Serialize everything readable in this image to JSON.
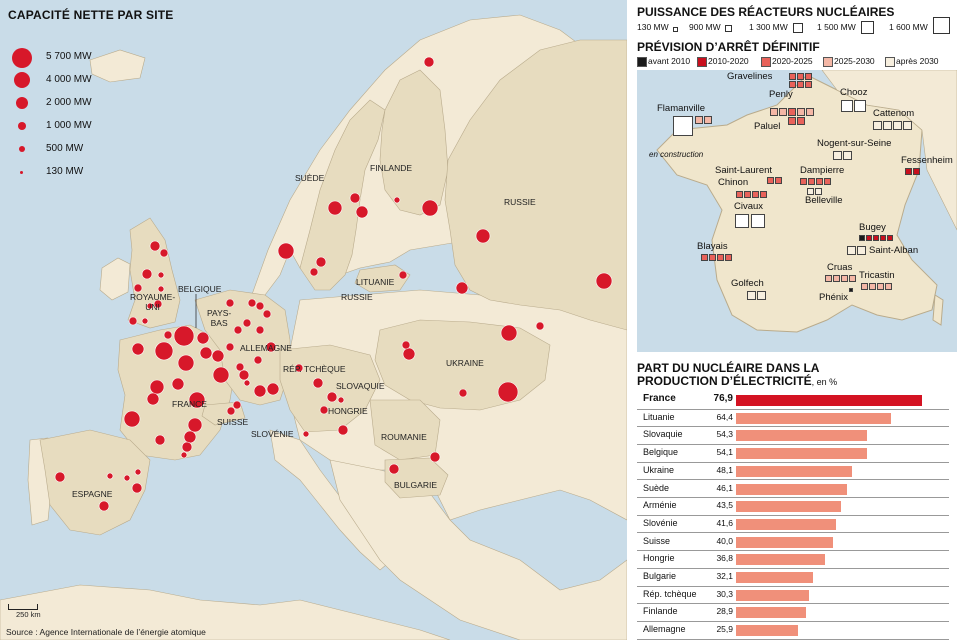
{
  "left_map": {
    "title": "CAPACITÉ NETTE PAR SITE",
    "legend": [
      {
        "label": "5 700 MW",
        "mw": 5700
      },
      {
        "label": "4 000 MW",
        "mw": 4000
      },
      {
        "label": "2 000 MW",
        "mw": 2000
      },
      {
        "label": "1 000 MW",
        "mw": 1000
      },
      {
        "label": "500 MW",
        "mw": 500
      },
      {
        "label": "130 MW",
        "mw": 130
      }
    ],
    "countries": {
      "suede": "SUÈDE",
      "finlande": "FINLANDE",
      "russie": "RUSSIE",
      "lituanie": "LITUANIE",
      "russie2": "RUSSIE",
      "royaume_uni": "ROYAUME-\nUNI",
      "belgique": "BELGIQUE",
      "pays_bas": "PAYS-\nBAS",
      "allemagne": "ALLEMAGNE",
      "rep_tcheque": "RÉP. TCHÈQUE",
      "slovaquie": "SLOVAQUIE",
      "ukraine": "UKRAINE",
      "france": "FRANCE",
      "suisse": "SUISSE",
      "hongrie": "HONGRIE",
      "slovenie": "SLOVÉNIE",
      "roumanie": "ROUMANIE",
      "bulgarie": "BULGARIE",
      "espagne": "ESPAGNE"
    },
    "scale_label": "250  km",
    "source": "Source : Agence Internationale de l’énergie atomique",
    "colors": {
      "sea": "#c9dce8",
      "land_eu": "#f3ead6",
      "land_nuclear": "#e7dcbf",
      "dot": "#d7182a"
    }
  },
  "right_panel": {
    "power_title": "PUISSANCE DES RÉACTEURS NUCLÉAIRES",
    "power_legend": [
      {
        "label": "130 MW",
        "mw": 130
      },
      {
        "label": "900 MW",
        "mw": 900
      },
      {
        "label": "1 300 MW",
        "mw": 1300
      },
      {
        "label": "1 500 MW",
        "mw": 1500
      },
      {
        "label": "1 600 MW",
        "mw": 1600
      }
    ],
    "shutdown_title": "PRÉVISION D’ARRÊT DÉFINITIF",
    "shutdown_legend": [
      {
        "label": "avant 2010",
        "color": "#1a1a1a"
      },
      {
        "label": "2010-2020",
        "color": "#c8101e"
      },
      {
        "label": "2020-2025",
        "color": "#e8625a"
      },
      {
        "label": "2025-2030",
        "color": "#f4b7a6"
      },
      {
        "label": "après 2030",
        "color": "#f7efdf"
      }
    ],
    "plants": {
      "gravelines": "Gravelines",
      "flamanville": "Flamanville",
      "penly": "Penly",
      "paluel": "Paluel",
      "chooz": "Chooz",
      "cattenom": "Cattenom",
      "nogent": "Nogent-sur-Seine",
      "fessenheim": "Fessenheim",
      "saint_laurent": "Saint-Laurent",
      "chinon": "Chinon",
      "dampierre": "Dampierre",
      "belleville": "Belleville",
      "civaux": "Civaux",
      "bugey": "Bugey",
      "saint_alban": "Saint-Alban",
      "blayais": "Blayais",
      "cruas": "Cruas",
      "tricastin": "Tricastin",
      "golfech": "Golfech",
      "phenix": "Phénix"
    },
    "en_construction": "en construction",
    "share_title_line1": "PART DU NUCLÉAIRE DANS LA",
    "share_title_line2": "PRODUCTION D’ÉLECTRICITÉ",
    "share_unit": ", en %",
    "chart_data": {
      "type": "bar",
      "title": "PART DU NUCLÉAIRE DANS LA PRODUCTION D’ÉLECTRICITÉ, en %",
      "categories": [
        "France",
        "Lituanie",
        "Slovaquie",
        "Belgique",
        "Ukraine",
        "Suède",
        "Arménie",
        "Slovénie",
        "Suisse",
        "Hongrie",
        "Bulgarie",
        "Rép. tchèque",
        "Finlande",
        "Allemagne"
      ],
      "values": [
        76.9,
        64.4,
        54.3,
        54.1,
        48.1,
        46.1,
        43.5,
        41.6,
        40.0,
        36.8,
        32.1,
        30.3,
        28.9,
        25.9
      ],
      "value_labels": [
        "76,9",
        "64,4",
        "54,3",
        "54,1",
        "48,1",
        "46,1",
        "43,5",
        "41,6",
        "40,0",
        "36,8",
        "32,1",
        "30,3",
        "28,9",
        "25,9"
      ],
      "xlim": [
        0,
        80
      ],
      "colors": {
        "highlight": "#d41322",
        "default": "#f0907a"
      }
    }
  }
}
